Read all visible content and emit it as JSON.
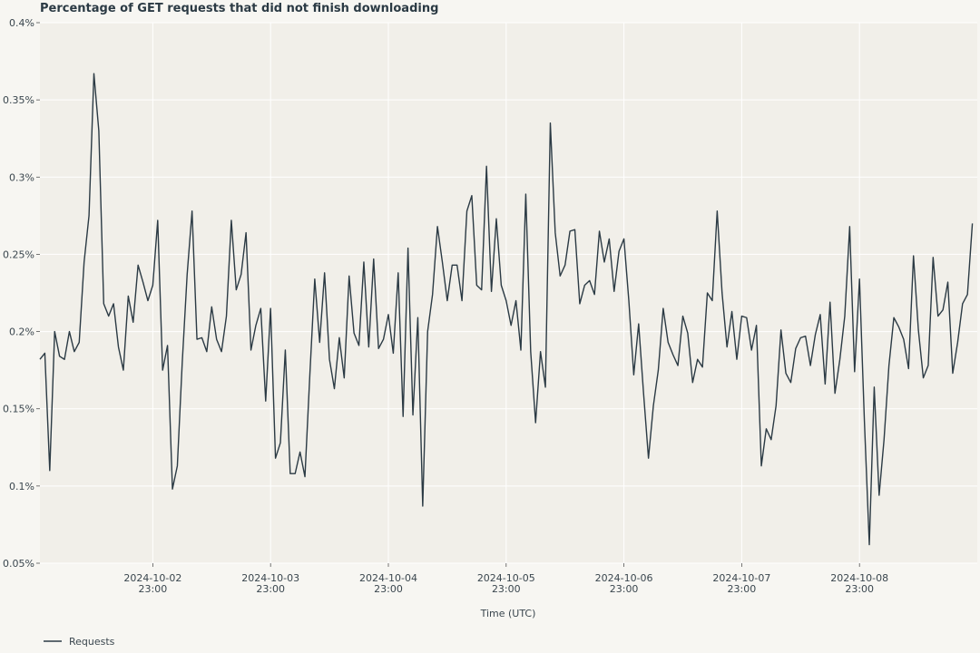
{
  "chart_data": {
    "type": "line",
    "title": "Percentage of GET requests that did not finish downloading",
    "xlabel": "Time (UTC)",
    "ylabel": "",
    "ylim": [
      0.0005,
      0.004
    ],
    "y_ticks": [
      {
        "value": 0.0005,
        "label": "0.05%"
      },
      {
        "value": 0.001,
        "label": "0.1%"
      },
      {
        "value": 0.0015,
        "label": "0.15%"
      },
      {
        "value": 0.002,
        "label": "0.2%"
      },
      {
        "value": 0.0025,
        "label": "0.25%"
      },
      {
        "value": 0.003,
        "label": "0.3%"
      },
      {
        "value": 0.0035,
        "label": "0.35%"
      },
      {
        "value": 0.004,
        "label": "0.4%"
      }
    ],
    "x_range": [
      "2024-10-02T00:00",
      "2024-10-09T23:00"
    ],
    "x_ticks": [
      {
        "time": "2024-10-02T23:00",
        "line1": "2024-10-02",
        "line2": "23:00"
      },
      {
        "time": "2024-10-03T23:00",
        "line1": "2024-10-03",
        "line2": "23:00"
      },
      {
        "time": "2024-10-04T23:00",
        "line1": "2024-10-04",
        "line2": "23:00"
      },
      {
        "time": "2024-10-05T23:00",
        "line1": "2024-10-05",
        "line2": "23:00"
      },
      {
        "time": "2024-10-06T23:00",
        "line1": "2024-10-06",
        "line2": "23:00"
      },
      {
        "time": "2024-10-07T23:00",
        "line1": "2024-10-07",
        "line2": "23:00"
      },
      {
        "time": "2024-10-08T23:00",
        "line1": "2024-10-08",
        "line2": "23:00"
      }
    ],
    "grid": true,
    "legend_position": "bottom-left",
    "series": [
      {
        "name": "Requests",
        "color": "#2b3a44",
        "start": "2024-10-02T00:00",
        "interval_hours": 1,
        "values": [
          0.00182,
          0.00186,
          0.0011,
          0.002,
          0.00184,
          0.00182,
          0.002,
          0.00187,
          0.00193,
          0.00245,
          0.00275,
          0.00367,
          0.0033,
          0.00218,
          0.0021,
          0.00218,
          0.0019,
          0.00175,
          0.00223,
          0.00206,
          0.00243,
          0.00232,
          0.0022,
          0.0023,
          0.00272,
          0.00175,
          0.00191,
          0.00098,
          0.00113,
          0.0018,
          0.00237,
          0.00278,
          0.00195,
          0.00196,
          0.00187,
          0.00216,
          0.00195,
          0.00187,
          0.0021,
          0.00272,
          0.00227,
          0.00237,
          0.00264,
          0.00188,
          0.00204,
          0.00215,
          0.00155,
          0.00215,
          0.00118,
          0.00128,
          0.00188,
          0.00108,
          0.00108,
          0.00122,
          0.00106,
          0.00172,
          0.00234,
          0.00193,
          0.00238,
          0.00182,
          0.00163,
          0.00196,
          0.0017,
          0.00236,
          0.00199,
          0.00191,
          0.00245,
          0.0019,
          0.00247,
          0.00189,
          0.00195,
          0.00211,
          0.00186,
          0.00238,
          0.00145,
          0.00254,
          0.00146,
          0.00209,
          0.00087,
          0.002,
          0.00224,
          0.00268,
          0.00245,
          0.0022,
          0.00243,
          0.00243,
          0.0022,
          0.00278,
          0.00288,
          0.0023,
          0.00227,
          0.00307,
          0.00226,
          0.00273,
          0.0023,
          0.0022,
          0.00204,
          0.0022,
          0.00188,
          0.00289,
          0.00187,
          0.00141,
          0.00187,
          0.00164,
          0.00335,
          0.00264,
          0.00236,
          0.00243,
          0.00265,
          0.00266,
          0.00218,
          0.0023,
          0.00233,
          0.00224,
          0.00265,
          0.00245,
          0.0026,
          0.00226,
          0.00252,
          0.0026,
          0.0022,
          0.00172,
          0.00205,
          0.0016,
          0.00118,
          0.00152,
          0.00175,
          0.00215,
          0.00193,
          0.00185,
          0.00178,
          0.0021,
          0.00199,
          0.00167,
          0.00182,
          0.00177,
          0.00225,
          0.0022,
          0.00278,
          0.00225,
          0.0019,
          0.00213,
          0.00182,
          0.0021,
          0.00209,
          0.00188,
          0.00204,
          0.00113,
          0.00137,
          0.0013,
          0.00152,
          0.00201,
          0.00173,
          0.00167,
          0.00189,
          0.00196,
          0.00197,
          0.00178,
          0.00198,
          0.00211,
          0.00166,
          0.00219,
          0.0016,
          0.00182,
          0.0021,
          0.00268,
          0.00174,
          0.00234,
          0.00142,
          0.00062,
          0.00164,
          0.00094,
          0.0013,
          0.00178,
          0.00209,
          0.00203,
          0.00195,
          0.00176,
          0.00249,
          0.00201,
          0.0017,
          0.00178,
          0.00248,
          0.0021,
          0.00214,
          0.00232,
          0.00173,
          0.00193,
          0.00218,
          0.00224,
          0.0027
        ]
      }
    ]
  }
}
